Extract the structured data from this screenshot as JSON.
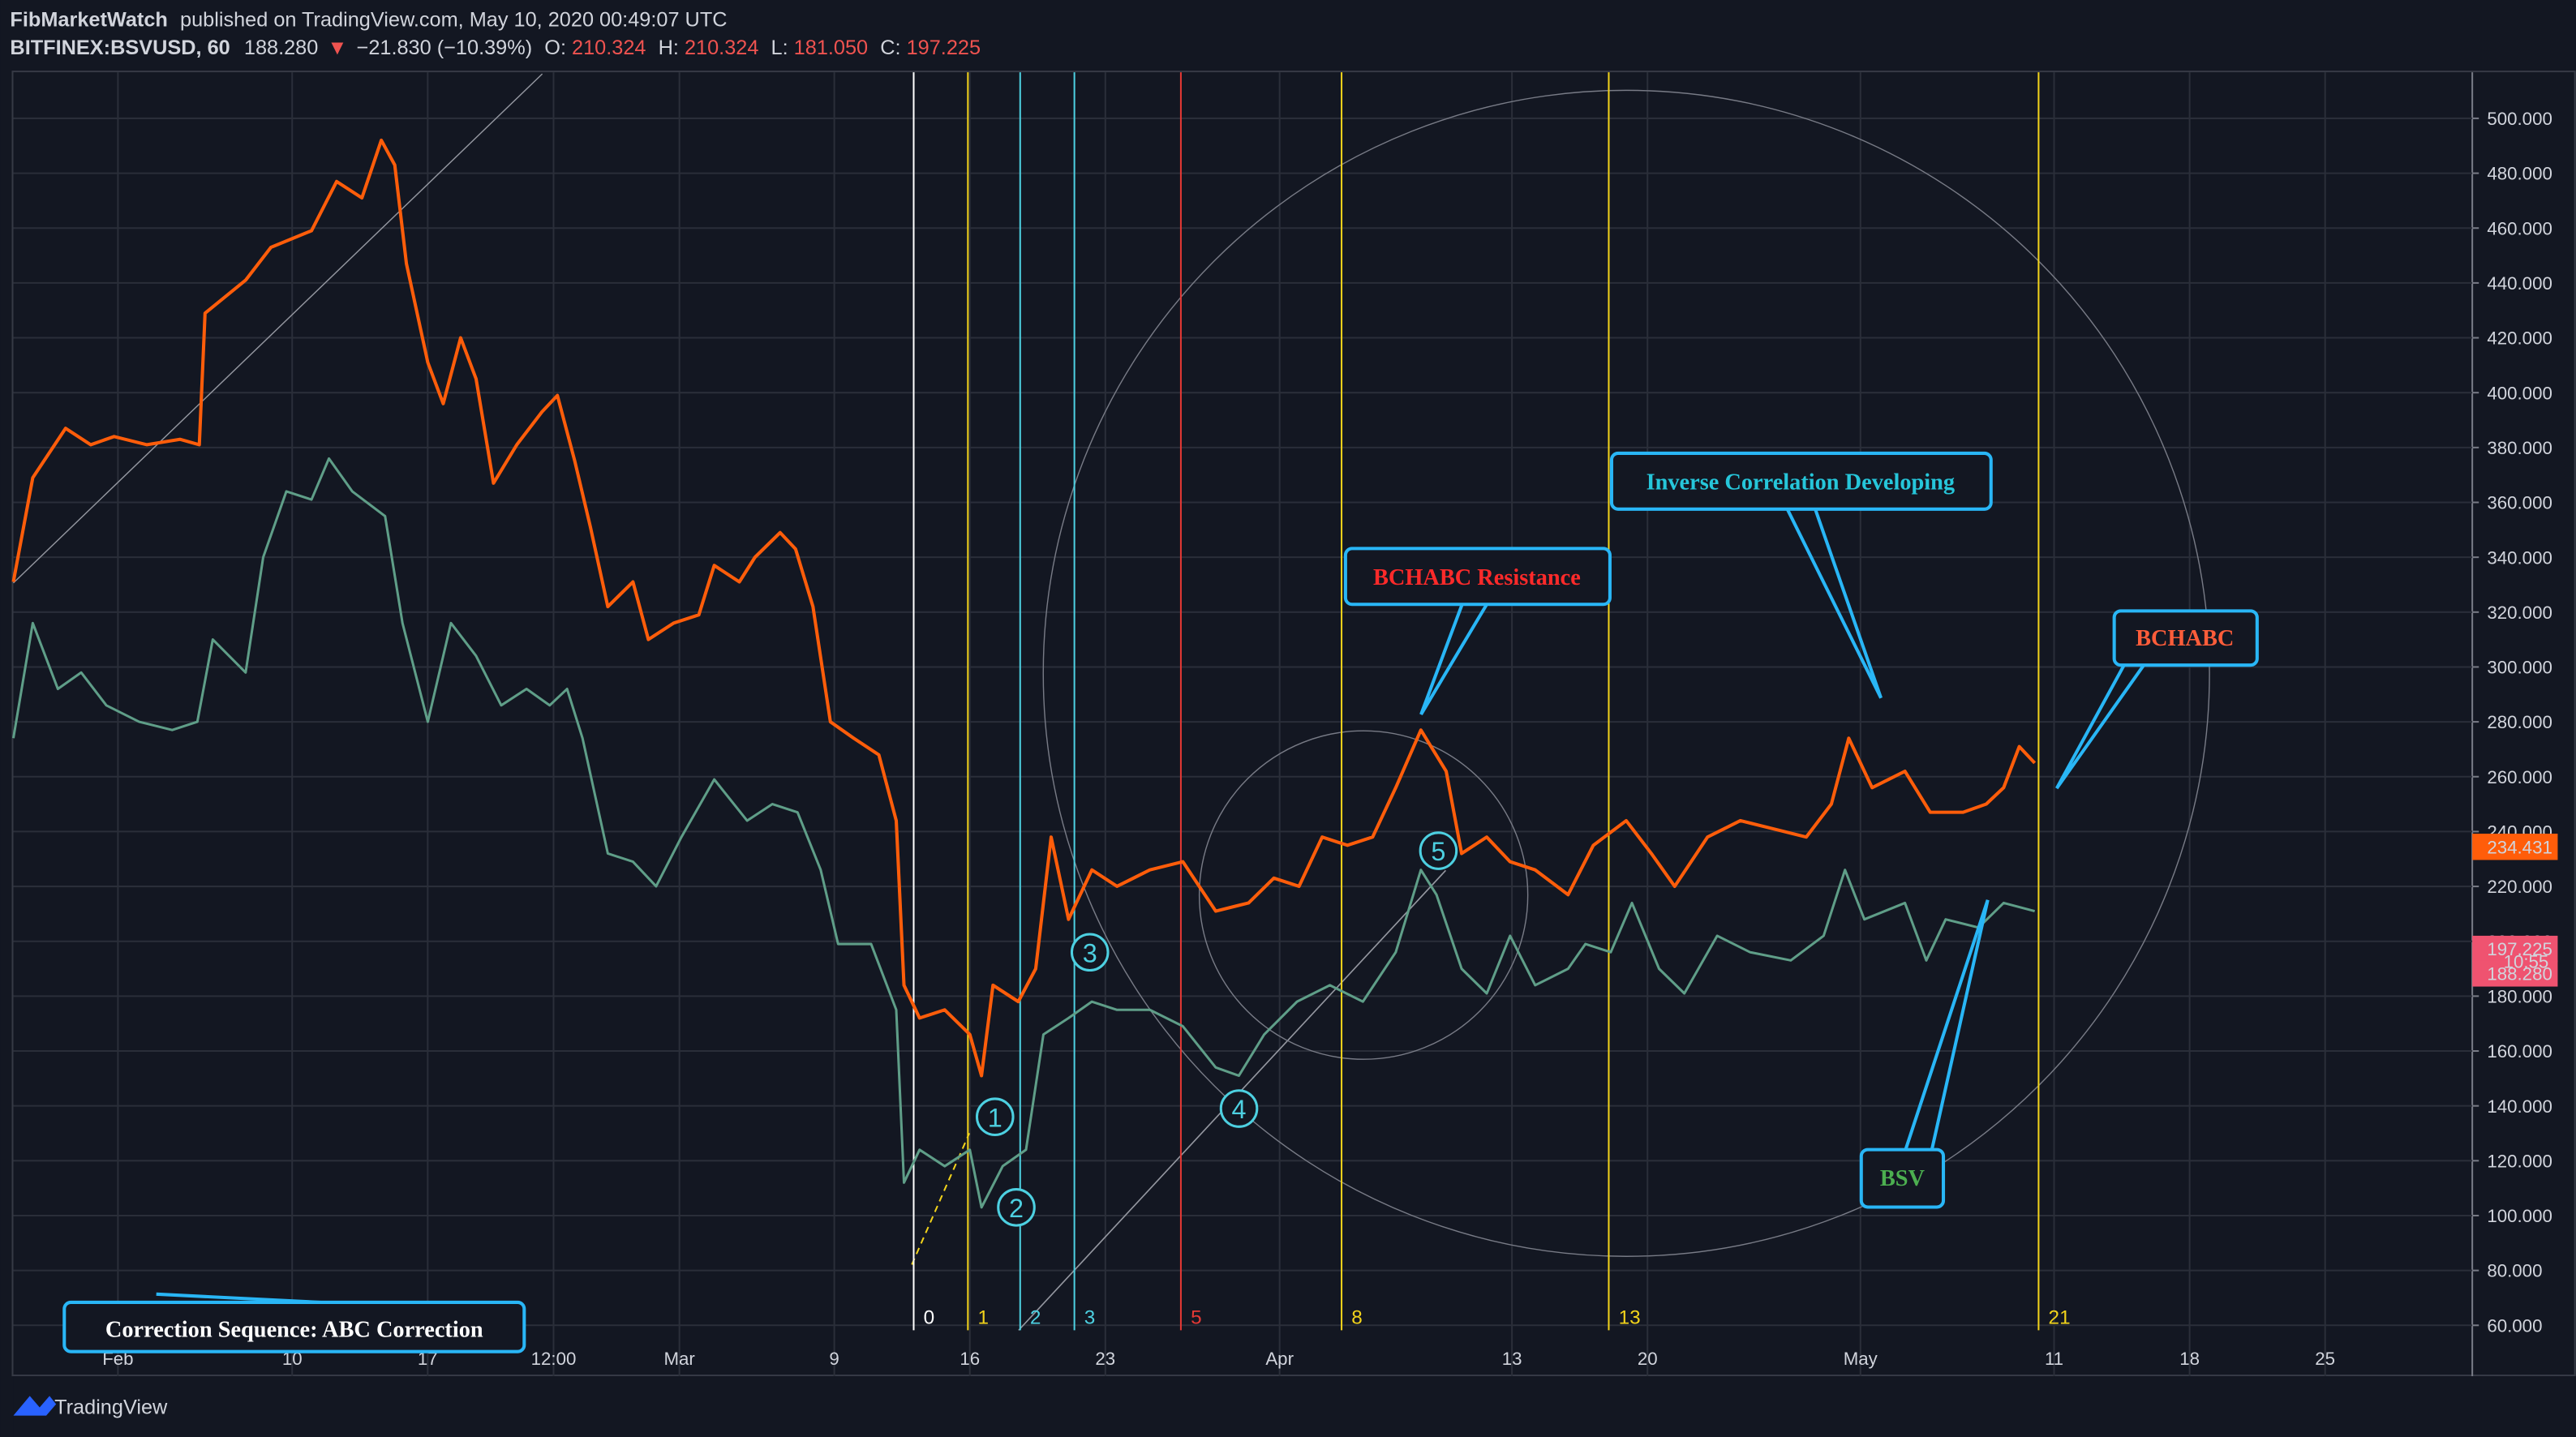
{
  "header": {
    "author": "FibMarketWatch",
    "published": "published on TradingView.com, May 10, 2020 00:49:07 UTC",
    "symbol": "BITFINEX:BSVUSD, 60",
    "last": "188.280",
    "arrow": "▼",
    "change": "−21.830 (−10.39%)",
    "o_label": "O:",
    "o": "210.324",
    "h_label": "H:",
    "h": "210.324",
    "l_label": "L:",
    "l": "181.050",
    "c_label": "C:",
    "c": "197.225"
  },
  "chart_data": {
    "type": "line",
    "xlim": [
      26.6,
      153.6
    ],
    "ylim": [
      58.2,
      516.8
    ],
    "grid": true,
    "xticks": [
      {
        "value": 32,
        "label": "Feb"
      },
      {
        "value": 41,
        "label": "10"
      },
      {
        "value": 48,
        "label": "17"
      },
      {
        "value": 54.5,
        "label": "12:00"
      },
      {
        "value": 61,
        "label": "Mar"
      },
      {
        "value": 69,
        "label": "9"
      },
      {
        "value": 76,
        "label": "16"
      },
      {
        "value": 83,
        "label": "23"
      },
      {
        "value": 92,
        "label": "Apr"
      },
      {
        "value": 104,
        "label": "13"
      },
      {
        "value": 111,
        "label": "20"
      },
      {
        "value": 122,
        "label": "May"
      },
      {
        "value": 132,
        "label": "11"
      },
      {
        "value": 139,
        "label": "18"
      },
      {
        "value": 146,
        "label": "25"
      }
    ],
    "yticks": [
      {
        "value": 60,
        "label": "60.000"
      },
      {
        "value": 80,
        "label": "80.000"
      },
      {
        "value": 100,
        "label": "100.000"
      },
      {
        "value": 120,
        "label": "120.000"
      },
      {
        "value": 140,
        "label": "140.000"
      },
      {
        "value": 160,
        "label": "160.000"
      },
      {
        "value": 180,
        "label": "180.000"
      },
      {
        "value": 200,
        "label": "200.000"
      },
      {
        "value": 220,
        "label": "220.000"
      },
      {
        "value": 240,
        "label": "240.000"
      },
      {
        "value": 260,
        "label": "260.000"
      },
      {
        "value": 280,
        "label": "280.000"
      },
      {
        "value": 300,
        "label": "300.000"
      },
      {
        "value": 320,
        "label": "320.000"
      },
      {
        "value": 340,
        "label": "340.000"
      },
      {
        "value": 360,
        "label": "360.000"
      },
      {
        "value": 380,
        "label": "380.000"
      },
      {
        "value": 400,
        "label": "400.000"
      },
      {
        "value": 420,
        "label": "420.000"
      },
      {
        "value": 440,
        "label": "440.000"
      },
      {
        "value": 460,
        "label": "460.000"
      },
      {
        "value": 480,
        "label": "480.000"
      },
      {
        "value": 500,
        "label": "500.000"
      }
    ],
    "series": [
      {
        "name": "BCHABC",
        "color": "#ff5d0a",
        "x": [
          26.6,
          27.6,
          29.3,
          30.6,
          31.8,
          33.5,
          35.2,
          36.2,
          36.5,
          38.6,
          39.9,
          42,
          43.3,
          44.6,
          45.6,
          46.3,
          46.9,
          48,
          48.8,
          49.7,
          50.5,
          51.4,
          52.6,
          53.9,
          54.7,
          55.6,
          56.4,
          57.3,
          58.6,
          59.4,
          60.7,
          62,
          62.8,
          64.1,
          64.9,
          66.2,
          67,
          67.9,
          68.8,
          70,
          71.3,
          72.2,
          72.6,
          73.4,
          74.7,
          76,
          76.6,
          77.2,
          78.5,
          79.4,
          80.2,
          81.1,
          82.3,
          83.6,
          85.3,
          87,
          88.7,
          90.4,
          91.7,
          93,
          94.2,
          95.5,
          96.8,
          98,
          99.3,
          100.6,
          101.4,
          102.7,
          103.9,
          105.2,
          106.9,
          108.2,
          109.9,
          111.2,
          112.4,
          114.1,
          115.8,
          117.5,
          119.2,
          120.5,
          121.4,
          122.6,
          124.3,
          125.6,
          127.3,
          128.5,
          129.4,
          130.2,
          131
        ],
        "values": [
          331,
          369,
          387,
          381,
          384,
          381,
          383,
          381,
          429,
          441,
          453,
          459,
          477,
          471,
          492,
          483,
          447,
          411,
          396,
          420,
          405,
          367,
          381,
          393,
          399,
          375,
          351,
          322,
          331,
          310,
          316,
          319,
          337,
          331,
          340,
          349,
          343,
          322,
          280,
          274,
          268,
          244,
          184,
          172,
          175,
          166,
          151,
          184,
          178,
          190,
          238,
          208,
          226,
          220,
          226,
          229,
          211,
          214,
          223,
          220,
          238,
          235,
          238,
          256,
          277,
          262,
          232,
          238,
          229,
          226,
          217,
          235,
          244,
          232,
          220,
          238,
          244,
          241,
          238,
          250,
          274,
          256,
          262,
          247,
          247,
          250,
          256,
          271,
          265
        ]
      },
      {
        "name": "BSV",
        "color": "#5f9e88",
        "x": [
          26.6,
          27.6,
          28.9,
          30.1,
          31.4,
          33.1,
          34.8,
          36.1,
          36.9,
          38.6,
          39.5,
          40.7,
          42,
          42.9,
          44.1,
          45.8,
          46.7,
          48,
          49.2,
          50.5,
          51.8,
          53.1,
          54.3,
          55.2,
          56,
          57.3,
          58.6,
          59.8,
          61.1,
          62.8,
          64.5,
          65.8,
          67.1,
          68.3,
          69.2,
          70.9,
          72.2,
          72.6,
          73.4,
          74.7,
          76,
          76.6,
          77.7,
          78.9,
          79.8,
          81.1,
          82.3,
          83.6,
          85.3,
          87,
          88.7,
          89.9,
          91.2,
          92.9,
          94.6,
          96.3,
          98,
          99.3,
          100.1,
          101.4,
          102.7,
          103.9,
          105.2,
          106.9,
          107.8,
          109.1,
          110.2,
          111.6,
          112.9,
          114.6,
          116.3,
          118.4,
          120.1,
          121.2,
          122.2,
          124.3,
          125.4,
          126.4,
          128.1,
          129.4,
          131
        ],
        "values": [
          274,
          316,
          292,
          298,
          286,
          280,
          277,
          280,
          310,
          298,
          340,
          364,
          361,
          376,
          364,
          355,
          316,
          280,
          316,
          304,
          286,
          292,
          286,
          292,
          274,
          232,
          229,
          220,
          238,
          259,
          244,
          250,
          247,
          226,
          199,
          199,
          175,
          112,
          124,
          118,
          124,
          103,
          118,
          124,
          166,
          172,
          178,
          175,
          175,
          169,
          154,
          151,
          166,
          178,
          184,
          178,
          196,
          226,
          217,
          190,
          181,
          202,
          184,
          190,
          199,
          196,
          214,
          190,
          181,
          202,
          196,
          193,
          202,
          226,
          208,
          214,
          193,
          208,
          205,
          214,
          211
        ]
      }
    ],
    "price_labels": [
      {
        "value": 234.431,
        "label": "234.431",
        "color": "#ff5d0a"
      },
      {
        "value": 197.225,
        "label": "197.225",
        "color": "#ef5370"
      },
      {
        "value": 188.28,
        "label": "188.280",
        "color": "#ef5370"
      }
    ],
    "countdown": "10:55",
    "time_zones": [
      {
        "x": 73.1,
        "label": "0",
        "color": "#ffffff"
      },
      {
        "x": 75.9,
        "label": "1",
        "color": "#f2d31b"
      },
      {
        "x": 78.6,
        "label": "2",
        "color": "#4dd0e1"
      },
      {
        "x": 81.4,
        "label": "3",
        "color": "#4dd0e1"
      },
      {
        "x": 86.9,
        "label": "5",
        "color": "#e53935"
      },
      {
        "x": 95.2,
        "label": "8",
        "color": "#f2d31b"
      },
      {
        "x": 109,
        "label": "13",
        "color": "#f2d31b"
      },
      {
        "x": 131.2,
        "label": "21",
        "color": "#f2d31b"
      }
    ],
    "waves": [
      {
        "x": 77.3,
        "y": 136,
        "label": "1"
      },
      {
        "x": 78.4,
        "y": 103,
        "label": "2"
      },
      {
        "x": 82.2,
        "y": 196,
        "label": "3"
      },
      {
        "x": 89.9,
        "y": 139,
        "label": "4"
      },
      {
        "x": 100.2,
        "y": 233,
        "label": "5"
      }
    ],
    "annotations": {
      "resistance": "BCHABC Resistance",
      "inverse": "Inverse Correlation Developing",
      "bchabc": "BCHABC",
      "bsv": "BSV",
      "correction": "Correction Sequence: ABC Correction"
    }
  },
  "footer": {
    "brand": "TradingView"
  }
}
